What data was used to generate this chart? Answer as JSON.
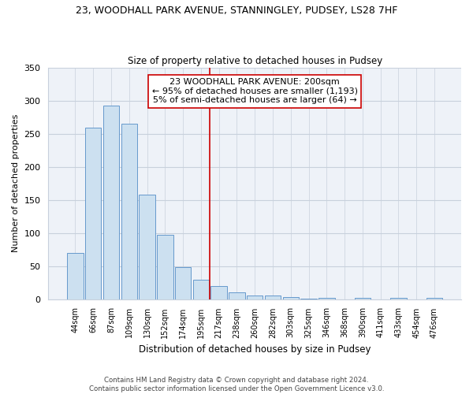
{
  "title": "23, WOODHALL PARK AVENUE, STANNINGLEY, PUDSEY, LS28 7HF",
  "subtitle": "Size of property relative to detached houses in Pudsey",
  "xlabel": "Distribution of detached houses by size in Pudsey",
  "ylabel": "Number of detached properties",
  "bar_color": "#cce0f0",
  "bar_edge_color": "#6699cc",
  "categories": [
    "44sqm",
    "66sqm",
    "87sqm",
    "109sqm",
    "130sqm",
    "152sqm",
    "174sqm",
    "195sqm",
    "217sqm",
    "238sqm",
    "260sqm",
    "282sqm",
    "303sqm",
    "325sqm",
    "346sqm",
    "368sqm",
    "390sqm",
    "411sqm",
    "433sqm",
    "454sqm",
    "476sqm"
  ],
  "values": [
    70,
    260,
    293,
    265,
    158,
    97,
    48,
    29,
    20,
    10,
    5,
    6,
    3,
    1,
    2,
    0,
    2,
    0,
    2,
    0,
    2
  ],
  "vline_x": 7.5,
  "vline_color": "#cc0000",
  "annotation_line1": "23 WOODHALL PARK AVENUE: 200sqm",
  "annotation_line2": "← 95% of detached houses are smaller (1,193)",
  "annotation_line3": "5% of semi-detached houses are larger (64) →",
  "ylim": [
    0,
    350
  ],
  "yticks": [
    0,
    50,
    100,
    150,
    200,
    250,
    300,
    350
  ],
  "footer_line1": "Contains HM Land Registry data © Crown copyright and database right 2024.",
  "footer_line2": "Contains public sector information licensed under the Open Government Licence v3.0.",
  "background_color": "#eef2f8",
  "grid_color": "#c8d0dc"
}
